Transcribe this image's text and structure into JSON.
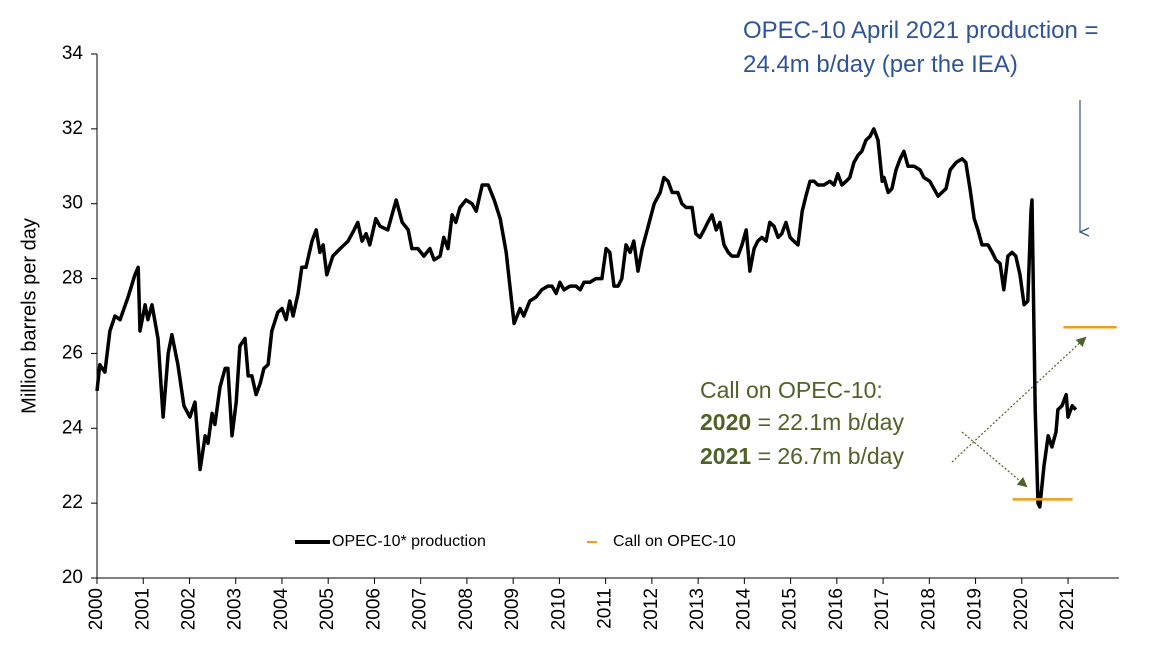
{
  "chart_data": {
    "type": "line",
    "y_label": "Million barrels per day",
    "xlim": [
      2000,
      2022.1
    ],
    "xticks": [
      2000,
      2001,
      2002,
      2003,
      2004,
      2005,
      2006,
      2007,
      2008,
      2009,
      2010,
      2011,
      2012,
      2013,
      2014,
      2015,
      2016,
      2017,
      2018,
      2019,
      2020,
      2021
    ],
    "ylim": [
      20,
      34
    ],
    "yticks": [
      20,
      22,
      24,
      26,
      28,
      30,
      32,
      34
    ],
    "x": [
      2000.0,
      2000.06,
      2000.17,
      2000.28,
      2000.39,
      2000.5,
      2000.67,
      2000.82,
      2000.89,
      2000.93,
      2001.04,
      2001.1,
      2001.19,
      2001.32,
      2001.43,
      2001.54,
      2001.62,
      2001.75,
      2001.88,
      2002.01,
      2002.12,
      2002.23,
      2002.34,
      2002.4,
      2002.49,
      2002.55,
      2002.66,
      2002.77,
      2002.83,
      2002.92,
      2003.01,
      2003.09,
      2003.2,
      2003.27,
      2003.35,
      2003.44,
      2003.53,
      2003.61,
      2003.7,
      2003.78,
      2003.91,
      2004.0,
      2004.09,
      2004.17,
      2004.24,
      2004.35,
      2004.43,
      2004.52,
      2004.65,
      2004.74,
      2004.82,
      2004.89,
      2004.97,
      2005.1,
      2005.26,
      2005.43,
      2005.56,
      2005.64,
      2005.73,
      2005.82,
      2005.9,
      2006.03,
      2006.12,
      2006.29,
      2006.38,
      2006.47,
      2006.6,
      2006.73,
      2006.81,
      2006.94,
      2007.07,
      2007.2,
      2007.29,
      2007.42,
      2007.5,
      2007.59,
      2007.68,
      2007.76,
      2007.85,
      2007.98,
      2008.11,
      2008.2,
      2008.33,
      2008.46,
      2008.59,
      2008.72,
      2008.85,
      2008.93,
      2009.02,
      2009.15,
      2009.23,
      2009.36,
      2009.49,
      2009.62,
      2009.75,
      2009.84,
      2009.93,
      2010.01,
      2010.1,
      2010.23,
      2010.36,
      2010.45,
      2010.53,
      2010.66,
      2010.79,
      2010.92,
      2011.01,
      2011.09,
      2011.18,
      2011.27,
      2011.35,
      2011.44,
      2011.53,
      2011.61,
      2011.7,
      2011.79,
      2011.92,
      2012.05,
      2012.18,
      2012.26,
      2012.35,
      2012.44,
      2012.56,
      2012.65,
      2012.74,
      2012.87,
      2012.95,
      2013.04,
      2013.13,
      2013.21,
      2013.3,
      2013.39,
      2013.47,
      2013.56,
      2013.65,
      2013.73,
      2013.86,
      2013.95,
      2014.04,
      2014.12,
      2014.21,
      2014.29,
      2014.38,
      2014.47,
      2014.55,
      2014.64,
      2014.73,
      2014.81,
      2014.9,
      2014.99,
      2015.07,
      2015.16,
      2015.25,
      2015.33,
      2015.42,
      2015.51,
      2015.59,
      2015.72,
      2015.85,
      2015.94,
      2016.02,
      2016.11,
      2016.2,
      2016.28,
      2016.37,
      2016.46,
      2016.54,
      2016.63,
      2016.72,
      2016.8,
      2016.89,
      2016.98,
      2017.02,
      2017.11,
      2017.19,
      2017.28,
      2017.37,
      2017.45,
      2017.54,
      2017.67,
      2017.8,
      2017.88,
      2018.01,
      2018.1,
      2018.19,
      2018.27,
      2018.36,
      2018.45,
      2018.58,
      2018.71,
      2018.79,
      2018.88,
      2018.97,
      2019.05,
      2019.14,
      2019.27,
      2019.36,
      2019.44,
      2019.53,
      2019.61,
      2019.7,
      2019.79,
      2019.87,
      2019.96,
      2020.05,
      2020.13,
      2020.2,
      2020.22,
      2020.29,
      2020.35,
      2020.39,
      2020.48,
      2020.57,
      2020.65,
      2020.74,
      2020.78,
      2020.87,
      2020.96,
      2021.0,
      2021.09,
      2021.17
    ],
    "series": [
      {
        "name": "OPEC-10* production",
        "color": "#000000",
        "values": [
          25.0,
          25.7,
          25.5,
          26.6,
          27.0,
          26.9,
          27.5,
          28.1,
          28.3,
          26.6,
          27.3,
          26.9,
          27.3,
          26.4,
          24.3,
          26.0,
          26.5,
          25.7,
          24.6,
          24.3,
          24.7,
          22.9,
          23.8,
          23.6,
          24.4,
          24.1,
          25.1,
          25.6,
          25.6,
          23.8,
          24.7,
          26.2,
          26.4,
          25.4,
          25.4,
          24.9,
          25.2,
          25.6,
          25.7,
          26.6,
          27.1,
          27.2,
          26.9,
          27.4,
          27.0,
          27.6,
          28.3,
          28.3,
          29.0,
          29.3,
          28.7,
          28.9,
          28.1,
          28.6,
          28.8,
          29.0,
          29.3,
          29.5,
          29.0,
          29.2,
          28.9,
          29.6,
          29.4,
          29.3,
          29.7,
          30.1,
          29.5,
          29.3,
          28.8,
          28.8,
          28.6,
          28.8,
          28.5,
          28.6,
          29.1,
          28.8,
          29.7,
          29.5,
          29.9,
          30.1,
          30.0,
          29.8,
          30.5,
          30.5,
          30.1,
          29.6,
          28.7,
          27.8,
          26.8,
          27.2,
          27.0,
          27.4,
          27.5,
          27.7,
          27.8,
          27.8,
          27.6,
          27.9,
          27.7,
          27.8,
          27.8,
          27.7,
          27.9,
          27.9,
          28.0,
          28.0,
          28.8,
          28.7,
          27.8,
          27.8,
          28.0,
          28.9,
          28.7,
          29.0,
          28.2,
          28.8,
          29.4,
          30.0,
          30.3,
          30.7,
          30.6,
          30.3,
          30.3,
          30.0,
          29.9,
          29.9,
          29.2,
          29.1,
          29.3,
          29.5,
          29.7,
          29.3,
          29.5,
          28.9,
          28.7,
          28.6,
          28.6,
          28.9,
          29.3,
          28.2,
          28.8,
          29.0,
          29.1,
          29.0,
          29.5,
          29.4,
          29.1,
          29.2,
          29.5,
          29.1,
          29.0,
          28.9,
          29.8,
          30.2,
          30.6,
          30.6,
          30.5,
          30.5,
          30.6,
          30.5,
          30.8,
          30.5,
          30.6,
          30.7,
          31.1,
          31.3,
          31.4,
          31.7,
          31.8,
          32.0,
          31.7,
          30.6,
          30.7,
          30.3,
          30.4,
          30.9,
          31.2,
          31.4,
          31.0,
          31.0,
          30.9,
          30.7,
          30.6,
          30.4,
          30.2,
          30.3,
          30.4,
          30.9,
          31.1,
          31.2,
          31.1,
          30.4,
          29.6,
          29.3,
          28.9,
          28.9,
          28.7,
          28.5,
          28.4,
          27.7,
          28.6,
          28.7,
          28.6,
          28.1,
          27.3,
          27.4,
          29.8,
          30.1,
          24.5,
          22.0,
          21.9,
          23.0,
          23.8,
          23.5,
          23.9,
          24.5,
          24.6,
          24.9,
          24.3,
          24.6,
          24.5
        ]
      },
      {
        "name": "Call on OPEC-10",
        "color": "#f39c12",
        "segments": [
          {
            "xrange": [
              2019.8,
              2021.1
            ],
            "value": 22.1
          },
          {
            "xrange": [
              2020.9,
              2022.05
            ],
            "value": 26.7
          }
        ]
      }
    ],
    "annotations": {
      "production": [
        "OPEC-10 April 2021 production =",
        "24.4m b/day (per the IEA)"
      ],
      "call": {
        "heading": "Call on OPEC-10:",
        "rows": [
          {
            "year": "2020",
            "text": "= 22.1m b/day"
          },
          {
            "year": "2021",
            "text": "= 26.7m b/day"
          }
        ]
      }
    }
  }
}
